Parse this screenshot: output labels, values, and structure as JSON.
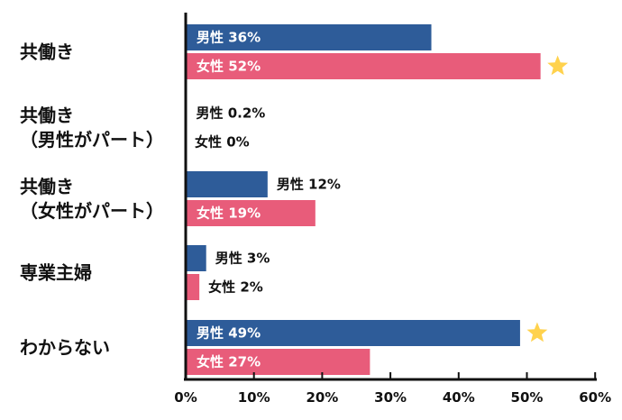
{
  "chart_data": {
    "type": "bar",
    "orientation": "horizontal",
    "categories": [
      [
        "共働き"
      ],
      [
        "共働き",
        "（男性がパート）"
      ],
      [
        "共働き",
        "（女性がパート）"
      ],
      [
        "専業主婦"
      ],
      [
        "わからない"
      ]
    ],
    "series": [
      {
        "key": "male",
        "color": "#2e5c99",
        "values": [
          36,
          0.2,
          12,
          3,
          49
        ],
        "labels": [
          "男性 36%",
          "男性 0.2%",
          "男性 12%",
          "男性 3%",
          "男性 49%"
        ]
      },
      {
        "key": "female",
        "color": "#e85c7a",
        "values": [
          52,
          0,
          19,
          2,
          27
        ],
        "labels": [
          "女性 52%",
          "女性 0%",
          "女性 19%",
          "女性 2%",
          "女性 27%"
        ]
      }
    ],
    "highlight": [
      {
        "category_index": 0,
        "series": "female",
        "icon": "star-icon",
        "color": "#ffd24d"
      },
      {
        "category_index": 4,
        "series": "male",
        "icon": "star-icon",
        "color": "#ffd24d"
      }
    ],
    "xlim": [
      0,
      60
    ],
    "xticks": [
      0,
      10,
      20,
      30,
      40,
      50,
      60
    ],
    "xtick_labels": [
      "0%",
      "10%",
      "20%",
      "30%",
      "40%",
      "50%",
      "60%"
    ],
    "title": "",
    "xlabel": "",
    "ylabel": "",
    "grid": false,
    "legend": "none"
  }
}
